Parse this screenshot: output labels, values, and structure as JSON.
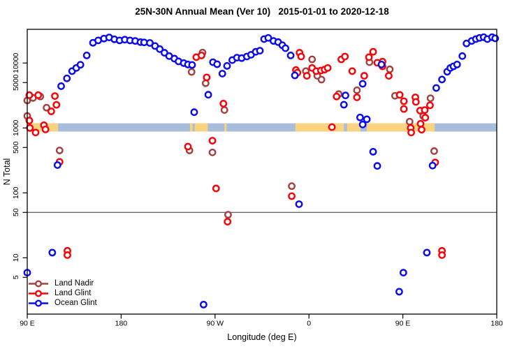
{
  "figure": {
    "title": "25N-30N Annual Mean (Ver 10)   2015-01-01 to 2020-12-18"
  },
  "chart_data": {
    "type": "scatter",
    "title": "25N-30N Annual Mean (Ver 10)   2015-01-01 to 2020-12-18",
    "xlabel": "Longitude (deg E)",
    "ylabel": "N Total",
    "x_axis": {
      "range_deg_continuous": [
        90,
        540
      ],
      "note": "longitude wraps: 90E to 180, 90W, 0, 90E, 180",
      "ticks": [
        {
          "value": 90,
          "label": "90 E"
        },
        {
          "value": 180,
          "label": "180"
        },
        {
          "value": 270,
          "label": "90 W"
        },
        {
          "value": 360,
          "label": "0"
        },
        {
          "value": 450,
          "label": "90 E"
        },
        {
          "value": 540,
          "label": "180"
        }
      ]
    },
    "y_axis": {
      "scale": "log",
      "range": [
        1.35,
        33000
      ],
      "ticks": [
        {
          "value": 10000,
          "label": "10000"
        },
        {
          "value": 5000,
          "label": "5000"
        },
        {
          "value": 1000,
          "label": "1000"
        },
        {
          "value": 500,
          "label": "500"
        },
        {
          "value": 100,
          "label": "100"
        },
        {
          "value": 50,
          "label": "50"
        },
        {
          "value": 10,
          "label": "10"
        },
        {
          "value": 5,
          "label": "5"
        }
      ]
    },
    "reference_line_y": 50,
    "coastline_band": {
      "center_value": 1000,
      "value_range": [
        880,
        1180
      ],
      "ocean_color": "#A9BEDB",
      "land_color": "#FAD37E",
      "land_segments_deg": [
        [
          90,
          119.5
        ],
        [
          246,
          248.5
        ],
        [
          250.5,
          263
        ],
        [
          279,
          281
        ],
        [
          347,
          393.5
        ],
        [
          396.5,
          409.5
        ],
        [
          415.5,
          480.5
        ]
      ]
    },
    "legend_position": "bottom-left",
    "grid": false,
    "series": [
      {
        "name": "Land Nadir",
        "color": "#A54040",
        "points": [
          [
            90,
            2650
          ],
          [
            95.5,
            2900
          ],
          [
            102.5,
            3050
          ],
          [
            108.5,
            2050
          ],
          [
            90,
            1530
          ],
          [
            121,
            450
          ],
          [
            245.5,
            450
          ],
          [
            247.5,
            7300
          ],
          [
            258,
            14500
          ],
          [
            261,
            4880
          ],
          [
            267.5,
            420
          ],
          [
            279,
            1890
          ],
          [
            282.5,
            46
          ],
          [
            343.5,
            127
          ],
          [
            357,
            7500
          ],
          [
            363,
            11400
          ],
          [
            368,
            6360
          ],
          [
            372,
            5560
          ],
          [
            388.5,
            3320
          ],
          [
            406,
            3810
          ],
          [
            418,
            10300
          ],
          [
            437.5,
            8000
          ],
          [
            442.5,
            3130
          ],
          [
            456.5,
            1250
          ],
          [
            469.5,
            1530
          ],
          [
            476.5,
            2870
          ],
          [
            480,
            440
          ]
        ]
      },
      {
        "name": "Land Glint",
        "color": "#FB0006",
        "points": [
          [
            92,
            3200
          ],
          [
            100.5,
            3200
          ],
          [
            116.5,
            3100
          ],
          [
            118,
            2270
          ],
          [
            113,
            1800
          ],
          [
            92,
            1300
          ],
          [
            106,
            1100
          ],
          [
            92.5,
            1000
          ],
          [
            98,
            850
          ],
          [
            107.5,
            950
          ],
          [
            121,
            300
          ],
          [
            128.5,
            12.8
          ],
          [
            128.5,
            11
          ],
          [
            244,
            516
          ],
          [
            252,
            12300
          ],
          [
            257,
            13100
          ],
          [
            262,
            6000
          ],
          [
            267.5,
            637
          ],
          [
            271,
            117
          ],
          [
            278,
            2370
          ],
          [
            282,
            36
          ],
          [
            347.5,
            7800
          ],
          [
            349,
            7100
          ],
          [
            351,
            14400
          ],
          [
            352.5,
            12600
          ],
          [
            358,
            6360
          ],
          [
            363,
            8400
          ],
          [
            367,
            7500
          ],
          [
            371.5,
            7670
          ],
          [
            375,
            7930
          ],
          [
            378,
            8400
          ],
          [
            382,
            1030
          ],
          [
            386.5,
            3050
          ],
          [
            391,
            11400
          ],
          [
            394.5,
            12600
          ],
          [
            401.5,
            7500
          ],
          [
            406,
            2960
          ],
          [
            413,
            6360
          ],
          [
            417.5,
            12300
          ],
          [
            421.5,
            14900
          ],
          [
            425.5,
            10100
          ],
          [
            430.5,
            10500
          ],
          [
            430.5,
            8890
          ],
          [
            436.5,
            6360
          ],
          [
            343.5,
            89
          ],
          [
            447,
            3230
          ],
          [
            451,
            2580
          ],
          [
            451,
            1960
          ],
          [
            457.5,
            1000
          ],
          [
            458,
            850
          ],
          [
            462,
            2960
          ],
          [
            462.5,
            2520
          ],
          [
            466.5,
            1850
          ],
          [
            467,
            1160
          ],
          [
            468,
            940
          ],
          [
            471,
            1890
          ],
          [
            471.5,
            1440
          ],
          [
            476,
            2230
          ],
          [
            481,
            294
          ],
          [
            487.5,
            12.8
          ],
          [
            487.5,
            11
          ]
        ]
      },
      {
        "name": "Ocean Glint",
        "color": "#0A0AF0",
        "points": [
          [
            122.5,
            4400
          ],
          [
            128,
            5800
          ],
          [
            133,
            7500
          ],
          [
            137,
            8400
          ],
          [
            141,
            9400
          ],
          [
            147,
            13100
          ],
          [
            153,
            20500
          ],
          [
            158,
            22300
          ],
          [
            163.5,
            23800
          ],
          [
            168.5,
            24800
          ],
          [
            173.5,
            23200
          ],
          [
            178.5,
            22300
          ],
          [
            183.5,
            22900
          ],
          [
            188.5,
            22300
          ],
          [
            193.5,
            21900
          ],
          [
            198.5,
            21000
          ],
          [
            202,
            20800
          ],
          [
            207.5,
            20400
          ],
          [
            212.5,
            18300
          ],
          [
            217,
            16400
          ],
          [
            221.5,
            14400
          ],
          [
            226,
            12800
          ],
          [
            231,
            11700
          ],
          [
            235,
            10600
          ],
          [
            240,
            9970
          ],
          [
            244,
            9490
          ],
          [
            248,
            9350
          ],
          [
            250,
            1750
          ],
          [
            263.5,
            3250
          ],
          [
            268,
            10300
          ],
          [
            272,
            9580
          ],
          [
            277,
            6870
          ],
          [
            281.5,
            9030
          ],
          [
            286.5,
            11100
          ],
          [
            291,
            12100
          ],
          [
            295.5,
            11900
          ],
          [
            300.5,
            12600
          ],
          [
            304.5,
            13400
          ],
          [
            309,
            14900
          ],
          [
            313,
            15500
          ],
          [
            317,
            23400
          ],
          [
            321,
            24400
          ],
          [
            326,
            21900
          ],
          [
            330.5,
            21000
          ],
          [
            334.5,
            18800
          ],
          [
            337.5,
            16900
          ],
          [
            342.5,
            13100
          ],
          [
            346.5,
            6450
          ],
          [
            350.5,
            67
          ],
          [
            393.5,
            2280
          ],
          [
            395,
            3170
          ],
          [
            409,
            1450
          ],
          [
            411.5,
            4790
          ],
          [
            411.5,
            1130
          ],
          [
            415.5,
            1360
          ],
          [
            421.5,
            430
          ],
          [
            425.5,
            260
          ],
          [
            429.5,
            9490
          ],
          [
            446.5,
            3
          ],
          [
            450.5,
            5.9
          ],
          [
            473,
            12
          ],
          [
            478.5,
            263
          ],
          [
            482,
            4130
          ],
          [
            487.5,
            5570
          ],
          [
            492.5,
            7340
          ],
          [
            495.5,
            8400
          ],
          [
            498.5,
            8890
          ],
          [
            502,
            9490
          ],
          [
            507,
            12800
          ],
          [
            511,
            20000
          ],
          [
            516,
            21900
          ],
          [
            520,
            23400
          ],
          [
            523.5,
            24400
          ],
          [
            527.5,
            25000
          ],
          [
            531,
            23400
          ],
          [
            535.5,
            25000
          ],
          [
            538.5,
            24000
          ],
          [
            119,
            268
          ],
          [
            114,
            12
          ],
          [
            90,
            5.9
          ],
          [
            259,
            1.9
          ]
        ]
      }
    ]
  }
}
